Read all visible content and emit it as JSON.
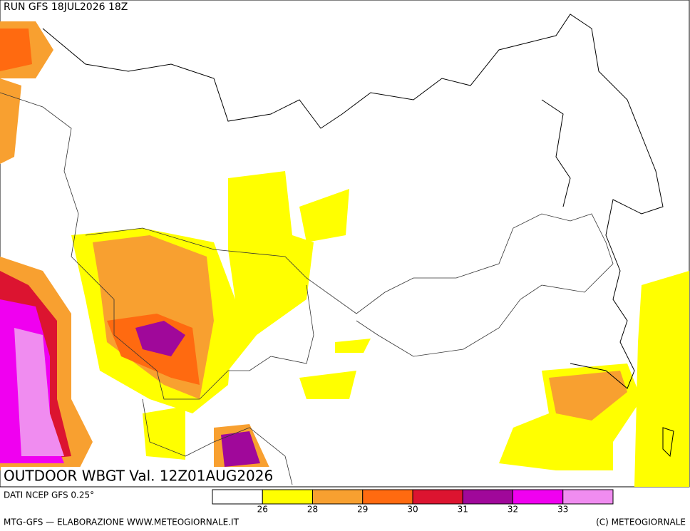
{
  "run_label": "RUN GFS 18JUL2026 18Z",
  "map_title": "OUTDOOR WBGT Val. 12Z01AUG2026",
  "source": "DATI NCEP GFS 0.25°",
  "legend": {
    "colors": [
      "#ffffff",
      "#ffff00",
      "#f8a030",
      "#ff6a10",
      "#dc1430",
      "#a0089a",
      "#f000f0",
      "#f08cf0"
    ],
    "ticks": [
      "26",
      "28",
      "29",
      "30",
      "31",
      "32",
      "33"
    ]
  },
  "footer_left": "MTG-GFS — ELABORAZIONE WWW.METEOGIORNALE.IT",
  "footer_right": "(C) METEOGIORNALE"
}
